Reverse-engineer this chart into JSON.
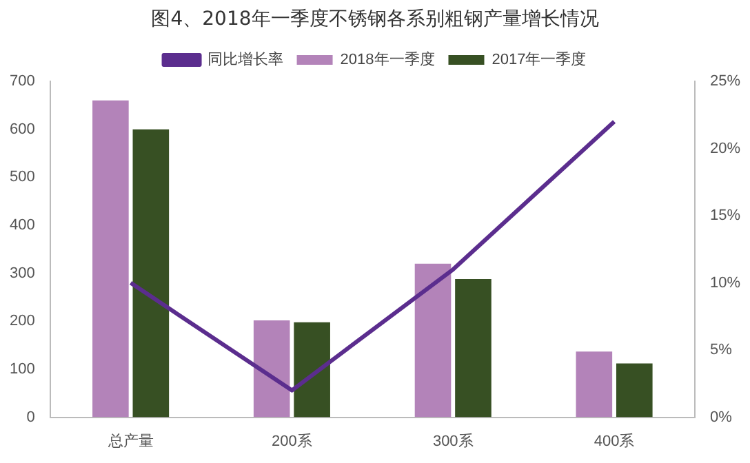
{
  "chart_data": {
    "type": "bar",
    "title": "图4、2018年一季度不锈钢各系别粗钢产量增长情况",
    "categories": [
      "总产量",
      "200系",
      "300系",
      "400系"
    ],
    "series": [
      {
        "name": "2018年一季度",
        "color": "#b383b9",
        "values": [
          660,
          202,
          320,
          137
        ]
      },
      {
        "name": "2017年一季度",
        "color": "#375023",
        "values": [
          600,
          198,
          288,
          112
        ]
      },
      {
        "name": "同比增长率",
        "type": "line",
        "axis": "y2",
        "color": "#5b2d8e",
        "values": [
          10,
          2,
          11,
          22
        ]
      }
    ],
    "ylim": [
      0,
      700
    ],
    "yticks": [
      0,
      100,
      200,
      300,
      400,
      500,
      600,
      700
    ],
    "y2lim": [
      0,
      25
    ],
    "y2ticks": [
      {
        "value": 0,
        "label": "0%"
      },
      {
        "value": 5,
        "label": "5%"
      },
      {
        "value": 10,
        "label": "10%"
      },
      {
        "value": 15,
        "label": "15%"
      },
      {
        "value": 20,
        "label": "20%"
      },
      {
        "value": 25,
        "label": "25%"
      }
    ],
    "grid": false,
    "legend": "top",
    "marker": "none"
  }
}
